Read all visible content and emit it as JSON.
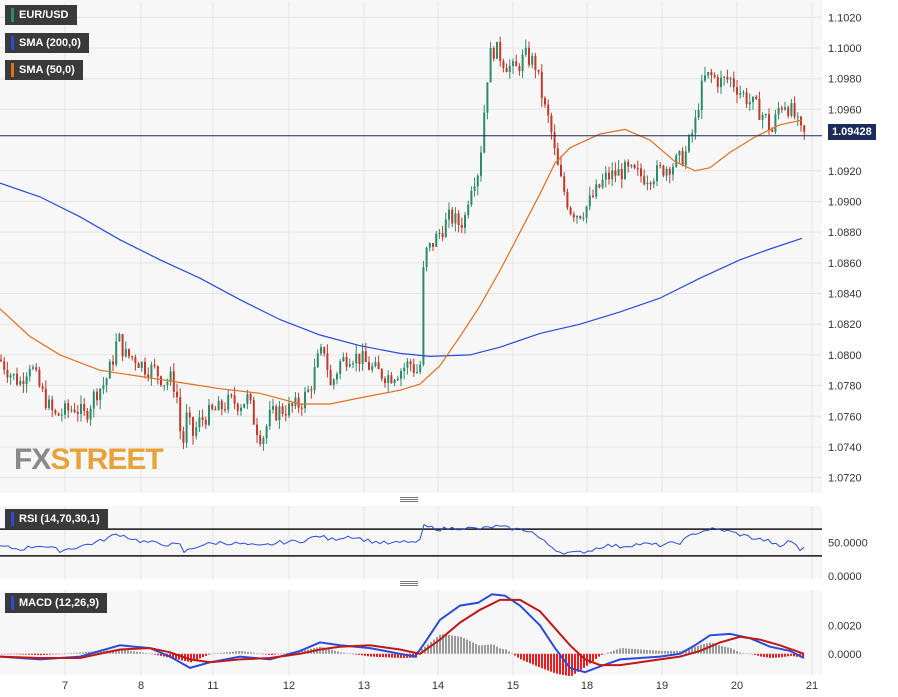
{
  "legend": {
    "symbol": "EUR/USD",
    "sma200_label": "SMA (200,0)",
    "sma50_label": "SMA (50,0)",
    "rsi_label": "RSI (14,70,30,1)",
    "macd_label": "MACD (12,26,9)"
  },
  "last_price_tag": "1.09428",
  "watermark": {
    "part1": "FX",
    "part2": "STREET"
  },
  "colors": {
    "up": "#2e8b6a",
    "down": "#c0392b",
    "sma200": "#2a4bd7",
    "sma50": "#e07020",
    "rsi": "#2a4bd7",
    "macd": "#2a4bd7",
    "signal": "#c01818",
    "hist_pos": "#9a9a9a",
    "hist_neg": "#ee1c1c",
    "price_line": "#1b2b5a",
    "watermark_fx": "#8a8a8a",
    "watermark_street": "#e8a23a"
  },
  "chart_data": [
    {
      "type": "candlestick",
      "series": "EUR/USD",
      "x_tick_labels": [
        "7",
        "8",
        "11",
        "12",
        "13",
        "14",
        "15",
        "18",
        "19",
        "20",
        "21"
      ],
      "y_tick_labels": [
        "1.0720",
        "1.0740",
        "1.0760",
        "1.0780",
        "1.0800",
        "1.0820",
        "1.0840",
        "1.0860",
        "1.0880",
        "1.0900",
        "1.0920",
        "1.0960",
        "1.0980",
        "1.1000",
        "1.1020"
      ],
      "ylim": [
        1.071,
        1.103
      ],
      "last_price": 1.09428,
      "close_path": [
        [
          0,
          1.0797
        ],
        [
          10,
          1.0788
        ],
        [
          20,
          1.0782
        ],
        [
          30,
          1.0795
        ],
        [
          40,
          1.0778
        ],
        [
          50,
          1.0765
        ],
        [
          55,
          1.076
        ],
        [
          65,
          1.0763
        ],
        [
          75,
          1.0766
        ],
        [
          85,
          1.076
        ],
        [
          95,
          1.0775
        ],
        [
          105,
          1.0782
        ],
        [
          112,
          1.0795
        ],
        [
          118,
          1.0812
        ],
        [
          125,
          1.08
        ],
        [
          135,
          1.0798
        ],
        [
          145,
          1.0792
        ],
        [
          155,
          1.079
        ],
        [
          165,
          1.0782
        ],
        [
          172,
          1.0785
        ],
        [
          178,
          1.077
        ],
        [
          182,
          1.0735
        ],
        [
          186,
          1.076
        ],
        [
          193,
          1.0748
        ],
        [
          200,
          1.0757
        ],
        [
          210,
          1.0762
        ],
        [
          220,
          1.0765
        ],
        [
          230,
          1.077
        ],
        [
          240,
          1.0768
        ],
        [
          248,
          1.0772
        ],
        [
          255,
          1.0755
        ],
        [
          262,
          1.0745
        ],
        [
          270,
          1.076
        ],
        [
          280,
          1.0764
        ],
        [
          290,
          1.0765
        ],
        [
          300,
          1.0768
        ],
        [
          310,
          1.0778
        ],
        [
          318,
          1.0797
        ],
        [
          325,
          1.0805
        ],
        [
          330,
          1.0778
        ],
        [
          340,
          1.0795
        ],
        [
          350,
          1.08
        ],
        [
          360,
          1.0798
        ],
        [
          370,
          1.0792
        ],
        [
          380,
          1.0788
        ],
        [
          390,
          1.0786
        ],
        [
          400,
          1.079
        ],
        [
          410,
          1.0795
        ],
        [
          416,
          1.0789
        ],
        [
          420,
          1.079
        ],
        [
          424,
          1.0865
        ],
        [
          430,
          1.087
        ],
        [
          440,
          1.088
        ],
        [
          450,
          1.089
        ],
        [
          460,
          1.0885
        ],
        [
          465,
          1.089
        ],
        [
          470,
          1.091
        ],
        [
          478,
          1.092
        ],
        [
          482,
          1.094
        ],
        [
          486,
          1.0975
        ],
        [
          490,
          1.0995
        ],
        [
          495,
          1.1
        ],
        [
          505,
          1.099
        ],
        [
          515,
          1.0985
        ],
        [
          525,
          1.0995
        ],
        [
          535,
          1.099
        ],
        [
          540,
          1.0975
        ],
        [
          545,
          1.096
        ],
        [
          550,
          1.095
        ],
        [
          555,
          1.093
        ],
        [
          560,
          1.0915
        ],
        [
          565,
          1.0905
        ],
        [
          570,
          1.0895
        ],
        [
          578,
          1.0892
        ],
        [
          585,
          1.0895
        ],
        [
          595,
          1.0905
        ],
        [
          605,
          1.0915
        ],
        [
          615,
          1.0918
        ],
        [
          625,
          1.092
        ],
        [
          635,
          1.0918
        ],
        [
          645,
          1.0916
        ],
        [
          655,
          1.0918
        ],
        [
          665,
          1.0922
        ],
        [
          675,
          1.0925
        ],
        [
          685,
          1.093
        ],
        [
          695,
          1.095
        ],
        [
          700,
          1.097
        ],
        [
          705,
          1.098
        ],
        [
          710,
          1.0982
        ],
        [
          720,
          1.0978
        ],
        [
          730,
          1.098
        ],
        [
          740,
          1.0972
        ],
        [
          750,
          1.0965
        ],
        [
          758,
          1.096
        ],
        [
          765,
          1.0955
        ],
        [
          772,
          1.0945
        ],
        [
          778,
          1.096
        ],
        [
          784,
          1.0965
        ],
        [
          790,
          1.096
        ],
        [
          795,
          1.0955
        ],
        [
          800,
          1.0945
        ],
        [
          805,
          1.0943
        ]
      ]
    },
    {
      "type": "line",
      "series": "SMA (200,0)",
      "path": [
        [
          0,
          1.0912
        ],
        [
          40,
          1.0903
        ],
        [
          80,
          1.089
        ],
        [
          120,
          1.0875
        ],
        [
          160,
          1.0862
        ],
        [
          200,
          1.085
        ],
        [
          240,
          1.0836
        ],
        [
          280,
          1.0823
        ],
        [
          320,
          1.0813
        ],
        [
          360,
          1.0806
        ],
        [
          400,
          1.0801
        ],
        [
          430,
          1.0799
        ],
        [
          470,
          1.08
        ],
        [
          500,
          1.0805
        ],
        [
          540,
          1.0814
        ],
        [
          580,
          1.082
        ],
        [
          620,
          1.0828
        ],
        [
          660,
          1.0837
        ],
        [
          700,
          1.085
        ],
        [
          740,
          1.0862
        ],
        [
          770,
          1.0869
        ],
        [
          802,
          1.0876
        ]
      ]
    },
    {
      "type": "line",
      "series": "SMA (50,0)",
      "path": [
        [
          0,
          1.083
        ],
        [
          30,
          1.0812
        ],
        [
          60,
          1.08
        ],
        [
          100,
          1.079
        ],
        [
          140,
          1.0786
        ],
        [
          180,
          1.0782
        ],
        [
          220,
          1.0778
        ],
        [
          260,
          1.0775
        ],
        [
          300,
          1.0768
        ],
        [
          330,
          1.0768
        ],
        [
          360,
          1.0772
        ],
        [
          400,
          1.0777
        ],
        [
          420,
          1.0781
        ],
        [
          440,
          1.0793
        ],
        [
          460,
          1.0812
        ],
        [
          480,
          1.0832
        ],
        [
          500,
          1.0855
        ],
        [
          520,
          1.088
        ],
        [
          540,
          1.0905
        ],
        [
          555,
          1.0925
        ],
        [
          570,
          1.0935
        ],
        [
          600,
          1.0944
        ],
        [
          625,
          1.0947
        ],
        [
          650,
          1.094
        ],
        [
          675,
          1.0926
        ],
        [
          695,
          1.092
        ],
        [
          710,
          1.0922
        ],
        [
          730,
          1.0932
        ],
        [
          755,
          1.0942
        ],
        [
          780,
          1.095
        ],
        [
          802,
          1.0953
        ]
      ]
    },
    {
      "type": "line",
      "series": "RSI (14,70,30,1)",
      "y_tick_labels": [
        "50.0000",
        "0.0000"
      ],
      "ylim": [
        0,
        100
      ],
      "levels": [
        70,
        30
      ],
      "path": [
        [
          0,
          44
        ],
        [
          20,
          40
        ],
        [
          40,
          46
        ],
        [
          60,
          38
        ],
        [
          80,
          44
        ],
        [
          100,
          52
        ],
        [
          118,
          63
        ],
        [
          140,
          52
        ],
        [
          160,
          48
        ],
        [
          180,
          46
        ],
        [
          184,
          36
        ],
        [
          200,
          46
        ],
        [
          220,
          50
        ],
        [
          240,
          48
        ],
        [
          260,
          44
        ],
        [
          280,
          50
        ],
        [
          300,
          52
        ],
        [
          320,
          60
        ],
        [
          330,
          54
        ],
        [
          350,
          60
        ],
        [
          370,
          52
        ],
        [
          390,
          48
        ],
        [
          410,
          52
        ],
        [
          418,
          46
        ],
        [
          424,
          74
        ],
        [
          440,
          70
        ],
        [
          460,
          72
        ],
        [
          480,
          70
        ],
        [
          495,
          74
        ],
        [
          515,
          70
        ],
        [
          530,
          68
        ],
        [
          545,
          50
        ],
        [
          560,
          36
        ],
        [
          575,
          34
        ],
        [
          590,
          38
        ],
        [
          605,
          46
        ],
        [
          620,
          44
        ],
        [
          640,
          48
        ],
        [
          660,
          46
        ],
        [
          680,
          50
        ],
        [
          695,
          64
        ],
        [
          710,
          70
        ],
        [
          725,
          68
        ],
        [
          740,
          62
        ],
        [
          755,
          56
        ],
        [
          770,
          52
        ],
        [
          780,
          42
        ],
        [
          790,
          55
        ],
        [
          800,
          38
        ],
        [
          804,
          45
        ]
      ]
    },
    {
      "type": "line",
      "series": "MACD (12,26,9)",
      "y_tick_labels": [
        "0.0020",
        "0.0000"
      ],
      "ylim": [
        -0.0015,
        0.0045
      ],
      "macd_path": [
        [
          0,
          -0.0002
        ],
        [
          40,
          -0.0004
        ],
        [
          80,
          -0.0002
        ],
        [
          120,
          0.0006
        ],
        [
          150,
          0.0004
        ],
        [
          170,
          -0.0002
        ],
        [
          190,
          -0.001
        ],
        [
          210,
          -0.0006
        ],
        [
          240,
          -0.0002
        ],
        [
          270,
          -0.0004
        ],
        [
          300,
          0.0002
        ],
        [
          320,
          0.0008
        ],
        [
          340,
          0.0006
        ],
        [
          370,
          0.0004
        ],
        [
          400,
          0.0
        ],
        [
          415,
          -0.0002
        ],
        [
          425,
          0.0008
        ],
        [
          440,
          0.0024
        ],
        [
          460,
          0.0034
        ],
        [
          478,
          0.0036
        ],
        [
          492,
          0.0042
        ],
        [
          505,
          0.0041
        ],
        [
          520,
          0.0034
        ],
        [
          540,
          0.002
        ],
        [
          555,
          0.0004
        ],
        [
          570,
          -0.001
        ],
        [
          585,
          -0.0013
        ],
        [
          600,
          -0.0009
        ],
        [
          620,
          -0.0004
        ],
        [
          640,
          -0.0003
        ],
        [
          660,
          -0.0002
        ],
        [
          680,
          0.0
        ],
        [
          695,
          0.0006
        ],
        [
          710,
          0.0013
        ],
        [
          730,
          0.0014
        ],
        [
          750,
          0.0011
        ],
        [
          770,
          0.0005
        ],
        [
          790,
          0.0002
        ],
        [
          804,
          -0.0003
        ]
      ],
      "signal_path": [
        [
          0,
          -0.0002
        ],
        [
          40,
          -0.0003
        ],
        [
          80,
          -0.0003
        ],
        [
          120,
          0.0003
        ],
        [
          150,
          0.0004
        ],
        [
          170,
          0.0001
        ],
        [
          190,
          -0.0004
        ],
        [
          210,
          -0.0006
        ],
        [
          240,
          -0.0004
        ],
        [
          270,
          -0.0003
        ],
        [
          300,
          0.0
        ],
        [
          320,
          0.0003
        ],
        [
          340,
          0.0005
        ],
        [
          370,
          0.0006
        ],
        [
          400,
          0.0003
        ],
        [
          420,
          0.0
        ],
        [
          440,
          0.001
        ],
        [
          460,
          0.0022
        ],
        [
          480,
          0.0031
        ],
        [
          500,
          0.0038
        ],
        [
          520,
          0.0038
        ],
        [
          540,
          0.003
        ],
        [
          555,
          0.0018
        ],
        [
          570,
          0.0006
        ],
        [
          585,
          -0.0004
        ],
        [
          600,
          -0.0008
        ],
        [
          620,
          -0.0008
        ],
        [
          640,
          -0.0006
        ],
        [
          660,
          -0.0004
        ],
        [
          680,
          -0.0002
        ],
        [
          700,
          0.0002
        ],
        [
          720,
          0.0008
        ],
        [
          740,
          0.0012
        ],
        [
          760,
          0.001
        ],
        [
          780,
          0.0006
        ],
        [
          804,
          0.0
        ]
      ]
    }
  ]
}
